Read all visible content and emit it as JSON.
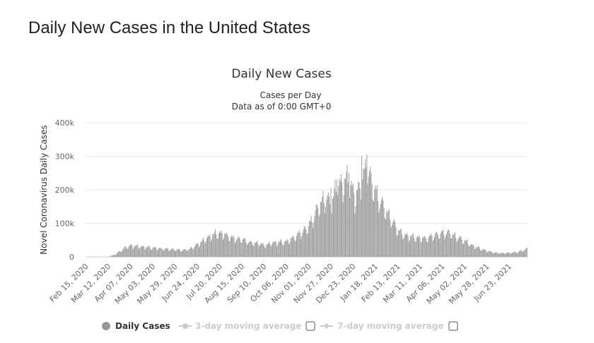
{
  "page": {
    "title": "Daily New Cases in the United States"
  },
  "chart_data": {
    "type": "bar",
    "title": "Daily New Cases",
    "subtitle_lines": [
      "Cases per Day",
      "Data as of 0:00 GMT+0"
    ],
    "ylabel": "Novel Coronavirus Daily Cases",
    "xlabel": "",
    "ylim": [
      0,
      400000
    ],
    "yticks": [
      {
        "value": 0,
        "label": "0"
      },
      {
        "value": 100000,
        "label": "100k"
      },
      {
        "value": 200000,
        "label": "200k"
      },
      {
        "value": 300000,
        "label": "300k"
      },
      {
        "value": 400000,
        "label": "400k"
      }
    ],
    "xticks": [
      "Feb 15, 2020",
      "Mar 12, 2020",
      "Apr 07, 2020",
      "May 03, 2020",
      "May 29, 2020",
      "Jun 24, 2020",
      "Jul 20, 2020",
      "Aug 15, 2020",
      "Sep 10, 2020",
      "Oct 06, 2020",
      "Nov 01, 2020",
      "Nov 27, 2020",
      "Dec 23, 2020",
      "Jan 18, 2021",
      "Feb 13, 2021",
      "Mar 11, 2021",
      "Apr 06, 2021",
      "May 02, 2021",
      "May 28, 2021",
      "Jun 23, 2021"
    ],
    "x_range": [
      "2020-02-15",
      "2021-07-14"
    ],
    "bar_color": "#a0a0a0",
    "grid": true,
    "legend_position": "bottom-center",
    "series": [
      {
        "name": "Daily Cases",
        "x_start": "2020-02-15",
        "anchors": [
          [
            "2020-02-15",
            0
          ],
          [
            "2020-03-07",
            200
          ],
          [
            "2020-03-12",
            500
          ],
          [
            "2020-03-19",
            6000
          ],
          [
            "2020-03-26",
            17000
          ],
          [
            "2020-04-02",
            30000
          ],
          [
            "2020-04-09",
            33000
          ],
          [
            "2020-04-20",
            30000
          ],
          [
            "2020-05-03",
            27000
          ],
          [
            "2020-05-15",
            24000
          ],
          [
            "2020-05-29",
            22000
          ],
          [
            "2020-06-08",
            20000
          ],
          [
            "2020-06-15",
            23000
          ],
          [
            "2020-06-24",
            36000
          ],
          [
            "2020-07-05",
            55000
          ],
          [
            "2020-07-16",
            70000
          ],
          [
            "2020-07-24",
            68000
          ],
          [
            "2020-08-05",
            55000
          ],
          [
            "2020-08-15",
            52000
          ],
          [
            "2020-08-25",
            42000
          ],
          [
            "2020-09-05",
            40000
          ],
          [
            "2020-09-10",
            33000
          ],
          [
            "2020-09-20",
            42000
          ],
          [
            "2020-10-06",
            45000
          ],
          [
            "2020-10-15",
            58000
          ],
          [
            "2020-10-22",
            70000
          ],
          [
            "2020-11-01",
            90000
          ],
          [
            "2020-11-08",
            125000
          ],
          [
            "2020-11-15",
            160000
          ],
          [
            "2020-11-22",
            175000
          ],
          [
            "2020-11-27",
            150000
          ],
          [
            "2020-12-04",
            210000
          ],
          [
            "2020-12-11",
            220000
          ],
          [
            "2020-12-18",
            230000
          ],
          [
            "2020-12-25",
            175000
          ],
          [
            "2021-01-01",
            215000
          ],
          [
            "2021-01-08",
            265000
          ],
          [
            "2021-01-12",
            235000
          ],
          [
            "2021-01-18",
            190000
          ],
          [
            "2021-01-25",
            160000
          ],
          [
            "2021-02-01",
            130000
          ],
          [
            "2021-02-08",
            100000
          ],
          [
            "2021-02-13",
            80000
          ],
          [
            "2021-02-20",
            65000
          ],
          [
            "2021-03-01",
            60000
          ],
          [
            "2021-03-11",
            55000
          ],
          [
            "2021-03-20",
            56000
          ],
          [
            "2021-03-29",
            65000
          ],
          [
            "2021-04-06",
            70000
          ],
          [
            "2021-04-14",
            72000
          ],
          [
            "2021-04-22",
            60000
          ],
          [
            "2021-05-02",
            48000
          ],
          [
            "2021-05-10",
            35000
          ],
          [
            "2021-05-20",
            25000
          ],
          [
            "2021-05-28",
            18000
          ],
          [
            "2021-06-08",
            12000
          ],
          [
            "2021-06-16",
            11000
          ],
          [
            "2021-06-23",
            12000
          ],
          [
            "2021-07-03",
            14000
          ],
          [
            "2021-07-14",
            24000
          ]
        ],
        "peaks": [
          [
            "2020-11-27",
            205000
          ],
          [
            "2020-12-04",
            230000
          ],
          [
            "2020-12-18",
            250000
          ],
          [
            "2021-01-02",
            300000
          ],
          [
            "2021-01-08",
            305000
          ]
        ]
      }
    ],
    "legend": [
      {
        "label": "Daily Cases",
        "active": true
      },
      {
        "label": "3-day moving average",
        "active": false
      },
      {
        "label": "7-day moving average",
        "active": false
      }
    ]
  }
}
